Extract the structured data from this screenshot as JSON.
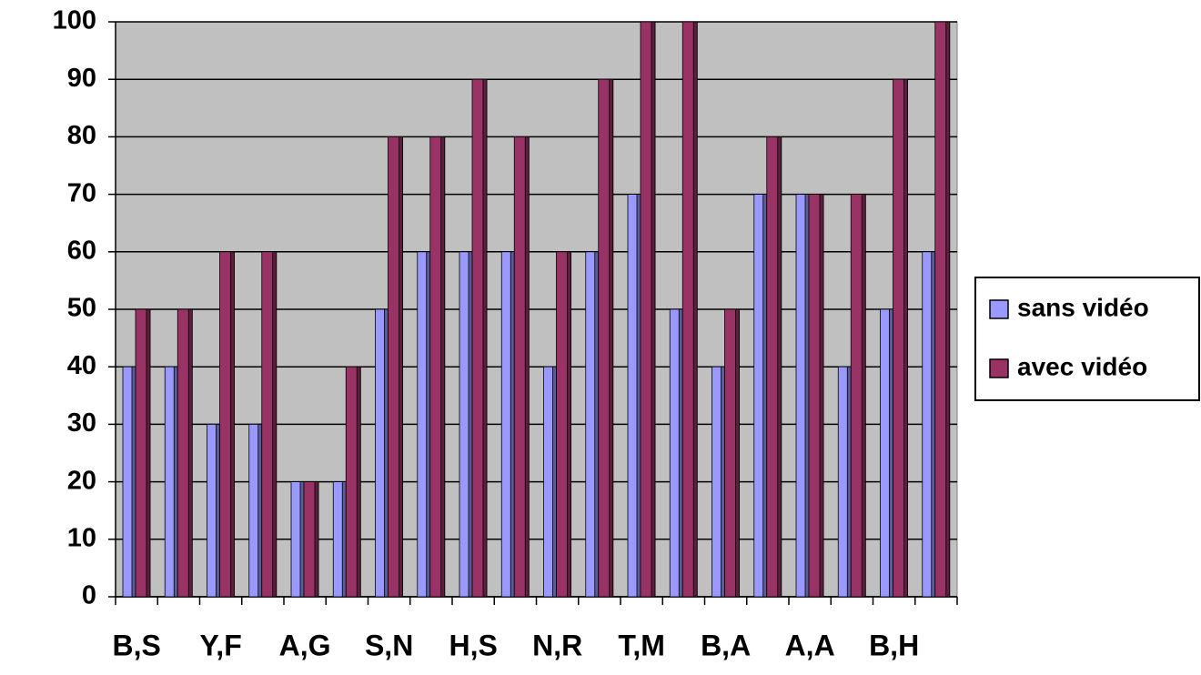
{
  "chart_data": {
    "type": "bar",
    "categories": [
      "B,S",
      null,
      "Y,F",
      null,
      "A,G",
      null,
      "S,N",
      null,
      "H,S",
      null,
      "N,R",
      null,
      "T,M",
      null,
      "B,A",
      null,
      "A,A",
      null,
      "B,H",
      null
    ],
    "series": [
      {
        "name": "sans vidéo",
        "color": "#9999ff",
        "values": [
          40,
          40,
          30,
          30,
          20,
          20,
          50,
          60,
          60,
          60,
          40,
          60,
          70,
          50,
          40,
          70,
          70,
          40,
          50,
          60
        ]
      },
      {
        "name": "avec vidéo",
        "color": "#993366",
        "values": [
          50,
          50,
          60,
          60,
          20,
          40,
          80,
          80,
          90,
          80,
          60,
          90,
          100,
          100,
          50,
          80,
          70,
          70,
          90,
          100
        ]
      }
    ],
    "ylim": [
      0,
      100
    ],
    "yticks": [
      0,
      10,
      20,
      30,
      40,
      50,
      60,
      70,
      80,
      90,
      100
    ],
    "grid": true,
    "legend": "right"
  }
}
